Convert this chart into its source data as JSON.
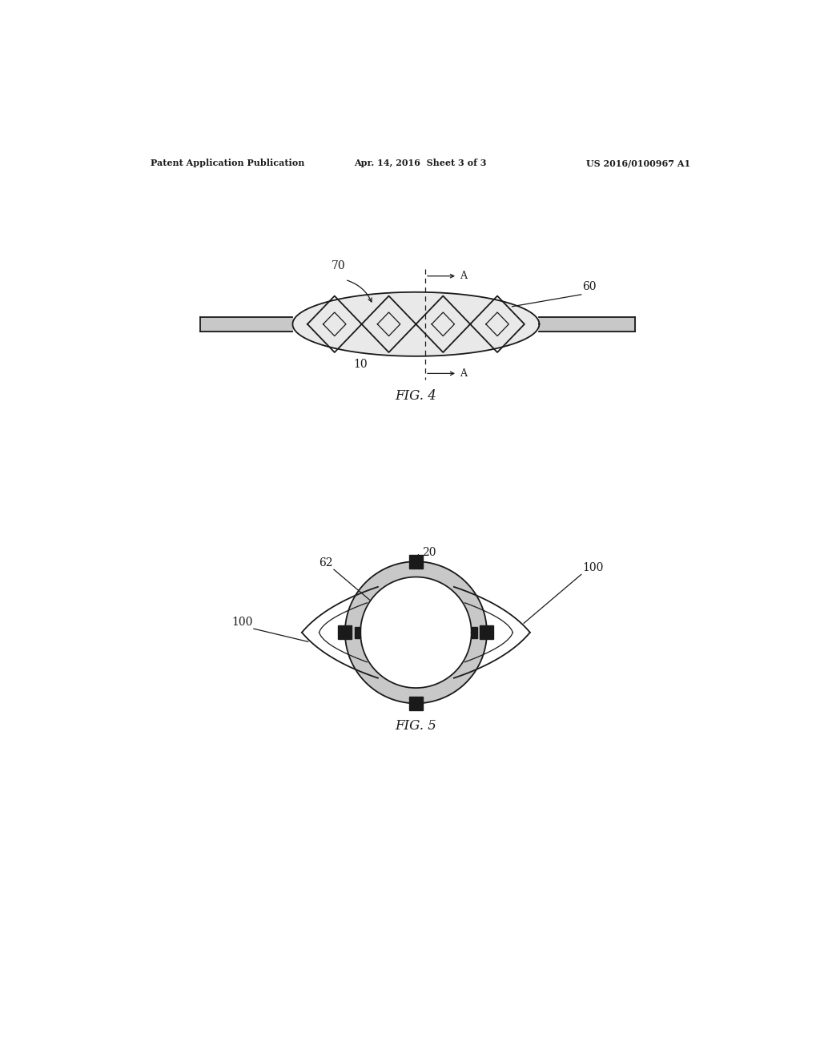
{
  "background_color": "#ffffff",
  "header_left": "Patent Application Publication",
  "header_center": "Apr. 14, 2016  Sheet 3 of 3",
  "header_right": "US 2016/0100967 A1",
  "fig4_label": "FIG. 4",
  "fig5_label": "FIG. 5",
  "line_color": "#1a1a1a",
  "gray_fill": "#c8c8c8",
  "white": "#ffffff"
}
